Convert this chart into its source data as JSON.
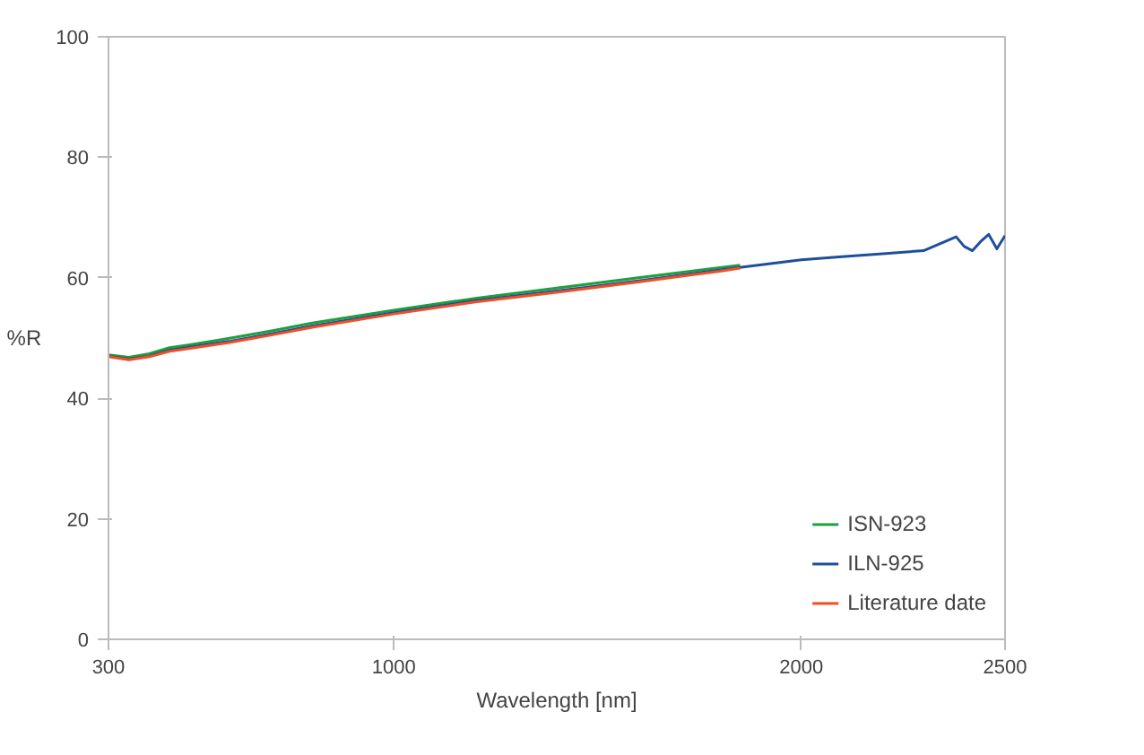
{
  "chart_data": {
    "type": "line",
    "xlabel": "Wavelength [nm]",
    "ylabel": "%R",
    "xlim": [
      300,
      2500
    ],
    "xticks": [
      300,
      1000,
      2000,
      2500
    ],
    "ylim": [
      0,
      100
    ],
    "yticks": [
      0,
      20,
      40,
      60,
      80,
      100
    ],
    "grid": false,
    "legend": "bottom right",
    "line_style": "solid",
    "marker": "none",
    "series": [
      {
        "name": "ISN-923",
        "color": "#1e9e3c",
        "x": [
          300,
          350,
          400,
          450,
          500,
          600,
          700,
          800,
          1000,
          1200,
          1400,
          1600,
          1800,
          1850
        ],
        "values": [
          47.2,
          46.8,
          47.4,
          48.4,
          48.9,
          50,
          51.2,
          52.5,
          54.6,
          56.6,
          58.3,
          60,
          61.7,
          62.1
        ]
      },
      {
        "name": "ILN-925",
        "color": "#1f4e9c",
        "x": [
          300,
          350,
          400,
          450,
          500,
          600,
          700,
          800,
          1000,
          1200,
          1400,
          1600,
          1800,
          2000,
          2100,
          2200,
          2300,
          2380,
          2400,
          2420,
          2440,
          2460,
          2480,
          2500
        ],
        "values": [
          47,
          46.5,
          47,
          48,
          48.5,
          49.5,
          50.7,
          52,
          54.2,
          56.2,
          57.8,
          59.5,
          61.3,
          63,
          63.5,
          64,
          64.5,
          66.8,
          65.2,
          64.5,
          66,
          67.2,
          64.8,
          67
        ]
      },
      {
        "name": "Literature date",
        "color": "#f04e23",
        "x": [
          300,
          350,
          400,
          450,
          500,
          600,
          700,
          800,
          1000,
          1200,
          1400,
          1600,
          1800,
          1850
        ],
        "values": [
          46.9,
          46.4,
          46.9,
          47.8,
          48.3,
          49.3,
          50.5,
          51.8,
          54,
          56,
          57.6,
          59.3,
          61.1,
          61.6
        ]
      }
    ]
  }
}
